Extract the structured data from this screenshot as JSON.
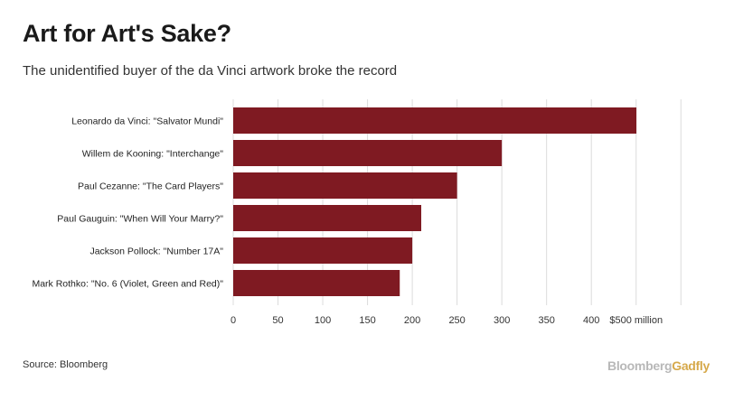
{
  "chart_data": {
    "type": "bar",
    "orientation": "horizontal",
    "title": "Art for Art's Sake?",
    "subtitle": "The unidentified buyer of the da Vinci artwork broke the record",
    "categories": [
      "Leonardo da Vinci: \"Salvator Mundi\"",
      "Willem de Kooning: \"Interchange\"",
      "Paul Cezanne: \"The Card Players\"",
      "Paul Gauguin: \"When Will Your Marry?\"",
      "Jackson Pollock: \"Number 17A\"",
      "Mark Rothko: \"No. 6 (Violet, Green and Red)\""
    ],
    "values": [
      450.3,
      300,
      250,
      210,
      200,
      186
    ],
    "unit": "$ million",
    "xlim": [
      0,
      500
    ],
    "tick_labels": [
      "0",
      "50",
      "100",
      "150",
      "200",
      "250",
      "300",
      "350",
      "400",
      "$500 million"
    ],
    "grid": true,
    "bar_color": "#7f1a22"
  },
  "footer": {
    "source": "Source: Bloomberg",
    "brand_part1": "Bloomberg",
    "brand_part2": "Gadfly"
  }
}
